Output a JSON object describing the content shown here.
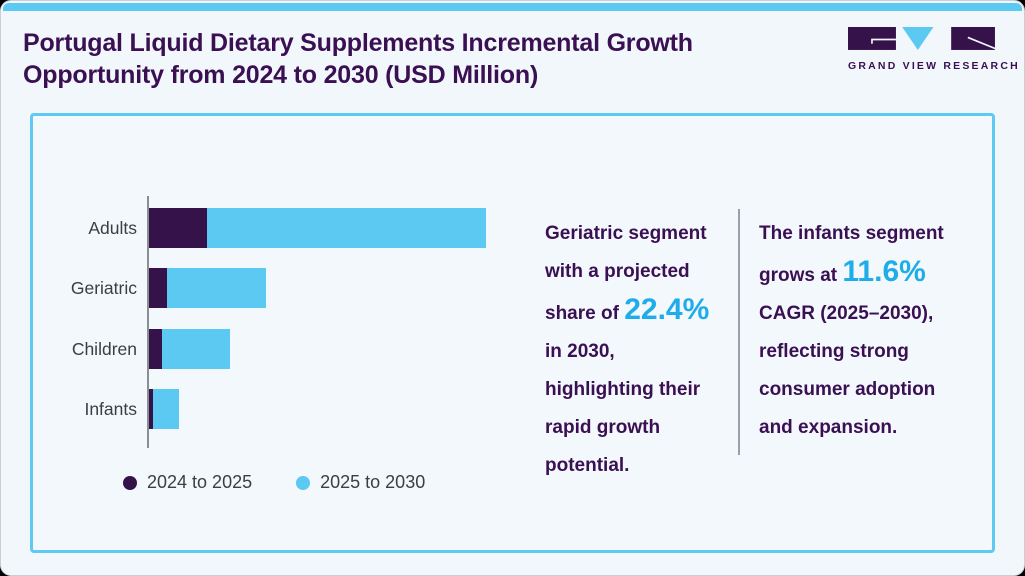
{
  "page": {
    "title": "Portugal Liquid Dietary Supplements Incremental Growth Opportunity from 2024 to 2030 (USD Million)"
  },
  "logo": {
    "name": "Grand View Research",
    "text": "GRAND VIEW RESEARCH"
  },
  "colors": {
    "accent_blue": "#5bc9f2",
    "dark_purple": "#35124a",
    "title_purple": "#3a1053",
    "highlight_blue": "#1fadea",
    "panel_border": "#5ec9f3"
  },
  "chart_data": {
    "type": "bar",
    "orientation": "horizontal",
    "title": "Portugal Liquid Dietary Supplements Incremental Growth Opportunity from 2024 to 2030 (USD Million)",
    "categories": [
      "Adults",
      "Geriatric",
      "Children",
      "Infants"
    ],
    "series": [
      {
        "name": "2024 to 2025",
        "color": "#35124a",
        "values": [
          58,
          18,
          13,
          4
        ]
      },
      {
        "name": "2025 to 2030",
        "color": "#5bc9f2",
        "values": [
          279,
          99,
          68,
          26
        ]
      }
    ],
    "value_axis_label": "",
    "value_axis_note": "axis unlabeled; values are relative estimates from bar lengths (USD Million scale not shown)",
    "xlim": [
      0,
      350
    ],
    "grid": false,
    "legend_position": "bottom"
  },
  "legend": {
    "items": [
      {
        "label": "2024 to 2025",
        "color": "#35124a"
      },
      {
        "label": "2025 to 2030",
        "color": "#5bc9f2"
      }
    ]
  },
  "annotations": {
    "geriatric": {
      "before": "Geriatric segment with a projected share of ",
      "highlight": "22.4%",
      "after": " in 2030, highlighting their rapid growth potential."
    },
    "infants": {
      "before": "The infants segment grows at ",
      "highlight": "11.6%",
      "after": " CAGR (2025–2030), reflecting strong consumer adoption and expansion."
    }
  }
}
